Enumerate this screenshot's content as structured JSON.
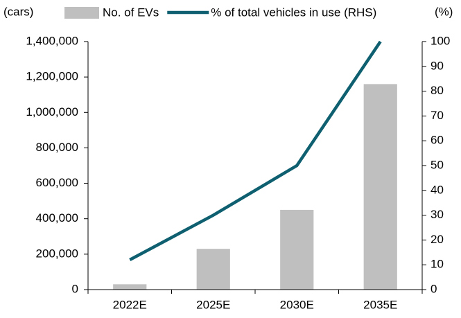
{
  "chart_data": {
    "type": "bar_line",
    "y_label": "(cars)",
    "y2_label": "(%)",
    "categories": [
      "2022E",
      "2025E",
      "2030E",
      "2035E"
    ],
    "series": [
      {
        "name": "No. of EVs",
        "type": "bar",
        "color": "#bfbfbf",
        "values": [
          30000,
          230000,
          450000,
          1160000
        ]
      },
      {
        "name": "% of total vehicles in use (RHS)",
        "type": "line",
        "axis": "y2",
        "color": "#0e6070",
        "values": [
          12,
          30,
          50,
          100
        ]
      }
    ],
    "ylim": [
      0,
      1400000
    ],
    "yticks": [
      0,
      {
        "value": 200000,
        "label": "200,000"
      },
      {
        "value": 400000,
        "label": "400,000"
      },
      {
        "value": 600000,
        "label": "600,000"
      },
      {
        "value": 800000,
        "label": "800,000"
      },
      {
        "value": 1000000,
        "label": "1,000,000"
      },
      {
        "value": 1200000,
        "label": "1,200,000"
      },
      {
        "value": 1400000,
        "label": "1,400,000"
      }
    ],
    "y2lim": [
      0,
      100
    ],
    "y2ticks": [
      0,
      10,
      20,
      30,
      40,
      50,
      60,
      70,
      80,
      90,
      100
    ],
    "legend": "top",
    "grid": false
  }
}
